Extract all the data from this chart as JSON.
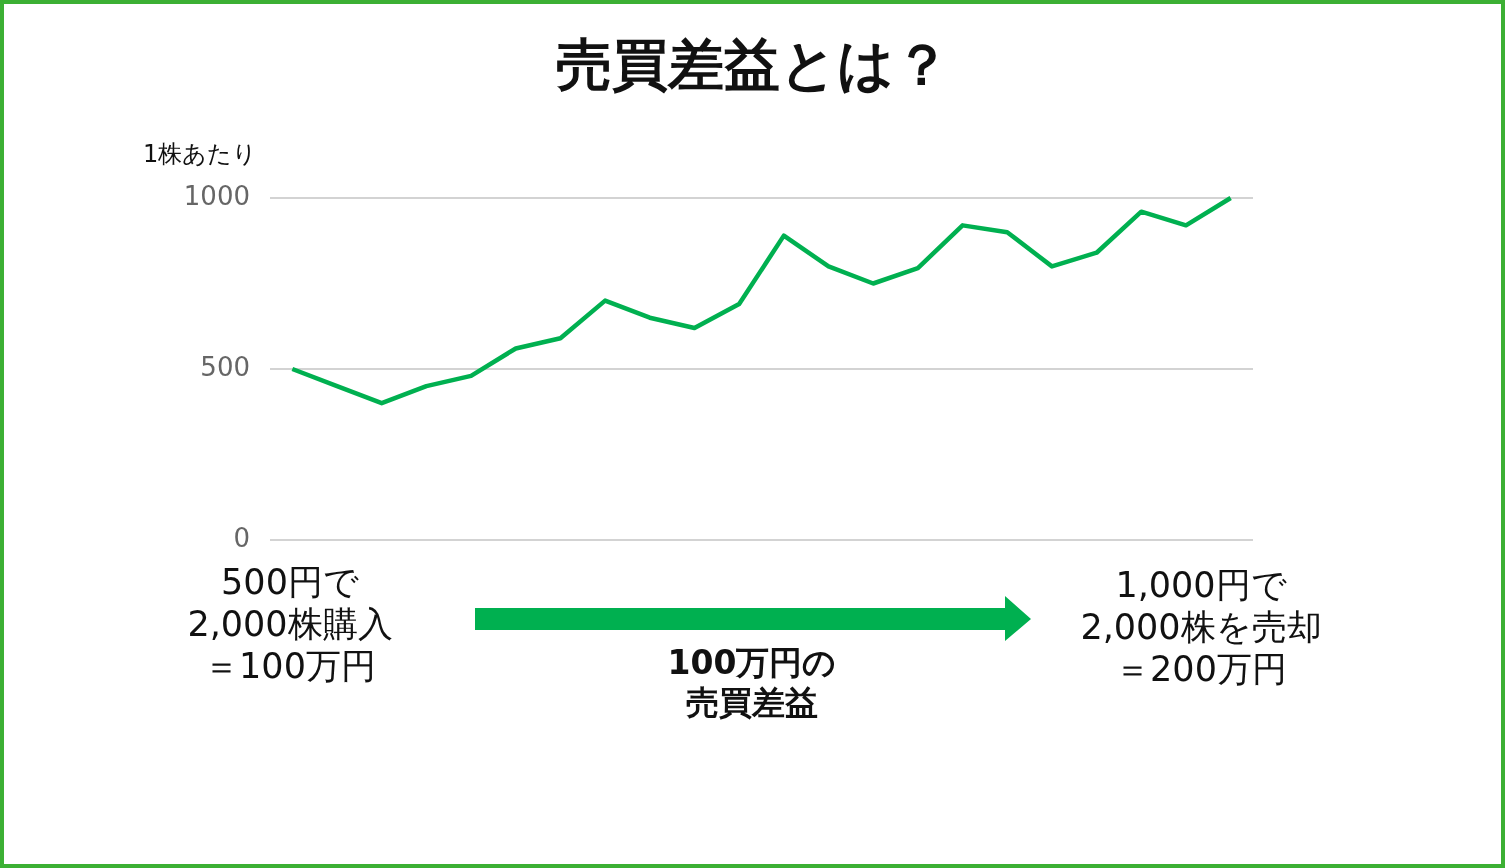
{
  "chart_data": {
    "type": "line",
    "title": "売買差益とは？",
    "ylabel": "1株あたり",
    "categories": [
      null,
      null,
      null,
      null,
      null,
      null,
      null,
      null,
      null,
      null,
      null,
      null,
      null,
      null,
      null,
      null,
      null,
      null,
      null,
      null,
      null,
      null
    ],
    "series": [
      {
        "color": "#00b050",
        "values": [
          500,
          450,
          400,
          450,
          480,
          560,
          590,
          700,
          650,
          620,
          690,
          890,
          800,
          750,
          795,
          920,
          900,
          800,
          840,
          960,
          920,
          1000
        ]
      }
    ],
    "ylim": [
      0,
      1000
    ],
    "yticks": [
      0,
      500,
      1000
    ],
    "grid": "y",
    "tick_labels": "y",
    "line_style": "solid",
    "annotations": [
      "500円で2,000株購入＝100万円",
      "100万円の売買差益",
      "1,000円で2,000株を売却＝200万円"
    ]
  }
}
